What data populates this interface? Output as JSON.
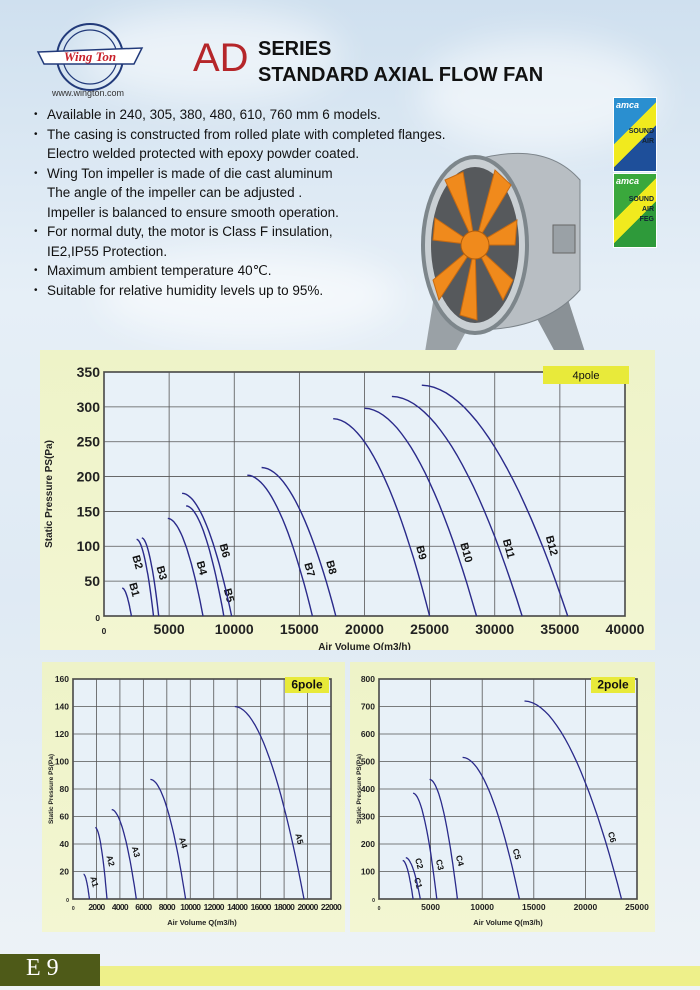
{
  "header": {
    "logo_text": "Wing Ton",
    "url": "www.wington.com",
    "series_code": "AD",
    "series_line1": "SERIES",
    "series_line2": "STANDARD AXIAL FLOW FAN"
  },
  "features": [
    [
      "Available in 240, 305, 380, 480, 610, 760 mm 6 models."
    ],
    [
      "The casing is constructed from rolled plate with completed flanges.",
      "Electro welded protected with epoxy powder coated."
    ],
    [
      "Wing Ton impeller is made of die cast aluminum",
      "The angle of the impeller can be adjusted .",
      "Impeller is balanced to ensure smooth operation."
    ],
    [
      "For normal duty, the motor is Class F insulation,",
      "IE2,IP55 Protection."
    ],
    [
      "Maximum ambient temperature 40℃."
    ],
    [
      "Suitable for relative humidity levels up to 95%."
    ]
  ],
  "badges": [
    {
      "title": "amca",
      "l1": "SOUND",
      "l2": "AIR"
    },
    {
      "title": "amca",
      "l1": "SOUND",
      "l2": "AIR",
      "l3": "FEG"
    }
  ],
  "footer": {
    "page": "E 9"
  },
  "colors": {
    "curve": "#2a2a8a",
    "tag": "#e8ea3a",
    "accent": "#b5262a"
  },
  "chart_data": [
    {
      "type": "line",
      "title": "4pole",
      "xlabel": "Air Volume Q(m3/h)",
      "ylabel": "Static Pressure PS(Pa)",
      "xlim": [
        0,
        40000
      ],
      "ylim": [
        0,
        350
      ],
      "xticks": [
        0,
        5000,
        10000,
        15000,
        20000,
        25000,
        30000,
        35000,
        40000
      ],
      "yticks": [
        0,
        50,
        100,
        150,
        200,
        250,
        300,
        350
      ],
      "series": [
        {
          "name": "B1",
          "start": [
            1400,
            40
          ],
          "end": [
            2100,
            0
          ]
        },
        {
          "name": "B2",
          "start": [
            2500,
            110
          ],
          "end": [
            3800,
            0
          ]
        },
        {
          "name": "B3",
          "start": [
            2900,
            112
          ],
          "end": [
            4200,
            0
          ]
        },
        {
          "name": "B4",
          "start": [
            4900,
            140
          ],
          "end": [
            7600,
            0
          ]
        },
        {
          "name": "B5",
          "start": [
            6300,
            158
          ],
          "end": [
            9200,
            0
          ]
        },
        {
          "name": "B6",
          "start": [
            6000,
            176
          ],
          "end": [
            9800,
            0
          ]
        },
        {
          "name": "B7",
          "start": [
            11000,
            202
          ],
          "end": [
            16000,
            0
          ]
        },
        {
          "name": "B8",
          "start": [
            12100,
            213
          ],
          "end": [
            17800,
            0
          ]
        },
        {
          "name": "B9",
          "start": [
            17600,
            283
          ],
          "end": [
            25000,
            0
          ]
        },
        {
          "name": "B10",
          "start": [
            20000,
            298
          ],
          "end": [
            28600,
            0
          ]
        },
        {
          "name": "B11",
          "start": [
            22100,
            315
          ],
          "end": [
            32100,
            0
          ]
        },
        {
          "name": "B12",
          "start": [
            24400,
            331
          ],
          "end": [
            35600,
            0
          ]
        }
      ]
    },
    {
      "type": "line",
      "title": "6pole",
      "xlabel": "Air Volume Q(m3/h)",
      "ylabel": "Static Pressure PS(Pa)",
      "xlim": [
        0,
        22000
      ],
      "ylim": [
        0,
        160
      ],
      "xticks": [
        0,
        2000,
        4000,
        6000,
        8000,
        10000,
        12000,
        14000,
        16000,
        18000,
        20000,
        22000
      ],
      "yticks": [
        0,
        20,
        40,
        60,
        80,
        100,
        120,
        140,
        160
      ],
      "series": [
        {
          "name": "A1",
          "start": [
            900,
            18
          ],
          "end": [
            1400,
            0
          ]
        },
        {
          "name": "A2",
          "start": [
            1900,
            52
          ],
          "end": [
            2900,
            0
          ]
        },
        {
          "name": "A3",
          "start": [
            3300,
            65
          ],
          "end": [
            5400,
            0
          ]
        },
        {
          "name": "A4",
          "start": [
            6600,
            87
          ],
          "end": [
            9600,
            0
          ]
        },
        {
          "name": "A5",
          "start": [
            13800,
            140
          ],
          "end": [
            19700,
            0
          ]
        }
      ]
    },
    {
      "type": "line",
      "title": "2pole",
      "xlabel": "Air Volume Q(m3/h)",
      "ylabel": "Static Pressure PS(Pa)",
      "xlim": [
        0,
        25000
      ],
      "ylim": [
        0,
        800
      ],
      "xticks": [
        0,
        5000,
        10000,
        15000,
        20000,
        25000
      ],
      "yticks": [
        0,
        100,
        200,
        300,
        400,
        500,
        600,
        700,
        800
      ],
      "series": [
        {
          "name": "C1",
          "start": [
            2300,
            140
          ],
          "end": [
            3300,
            0
          ]
        },
        {
          "name": "C2",
          "start": [
            2600,
            150
          ],
          "end": [
            4000,
            0
          ]
        },
        {
          "name": "C3",
          "start": [
            3300,
            385
          ],
          "end": [
            5600,
            0
          ]
        },
        {
          "name": "C4",
          "start": [
            4900,
            435
          ],
          "end": [
            7600,
            0
          ]
        },
        {
          "name": "C5",
          "start": [
            8100,
            515
          ],
          "end": [
            13600,
            0
          ]
        },
        {
          "name": "C6",
          "start": [
            14100,
            720
          ],
          "end": [
            23500,
            0
          ]
        }
      ]
    }
  ]
}
